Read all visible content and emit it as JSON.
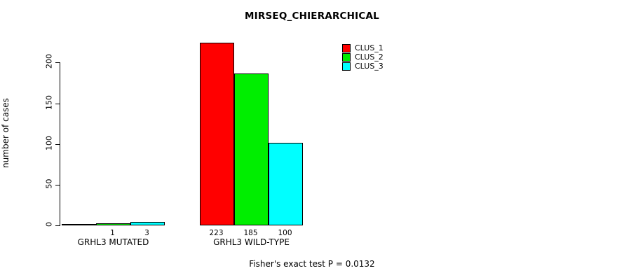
{
  "chart_data": {
    "type": "bar",
    "title": "MIRSEQ_CHIERARCHICAL",
    "xlabel": "",
    "ylabel": "number of cases",
    "ylim": [
      0,
      230
    ],
    "yticks": [
      0,
      50,
      100,
      150,
      200
    ],
    "grid": false,
    "legend_position": "top-right",
    "series": [
      "CLUS_1",
      "CLUS_2",
      "CLUS_3"
    ],
    "colors": [
      "#FF0000",
      "#00EE00",
      "#00FFFF"
    ],
    "groups": [
      {
        "label": "GRHL3 MUTATED",
        "values": [
          0,
          1,
          3
        ],
        "bar_labels": [
          "",
          "1",
          "3"
        ]
      },
      {
        "label": "GRHL3 WILD-TYPE",
        "values": [
          223,
          185,
          100
        ],
        "bar_labels": [
          "223",
          "185",
          "100"
        ]
      }
    ],
    "annotation": "Fisher's exact test P = 0.0132"
  }
}
